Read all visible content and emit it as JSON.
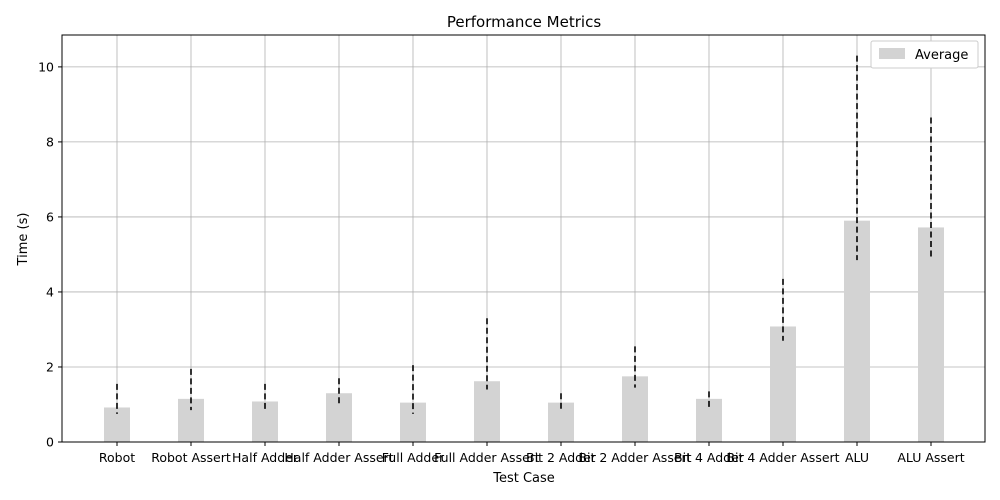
{
  "chart_data": {
    "type": "bar",
    "title": "Performance Metrics",
    "xlabel": "Test Case",
    "ylabel": "Time (s)",
    "categories": [
      "Robot",
      "Robot Assert",
      "Half Adder",
      "Half Adder Assert",
      "Full Adder",
      "Full Adder Assert",
      "Bit 2 Adder",
      "Bit 2 Adder Assert",
      "Bit 4 Adder",
      "Bit 4 Adder Assert",
      "ALU",
      "ALU Assert"
    ],
    "series": [
      {
        "name": "Average",
        "values": [
          0.92,
          1.15,
          1.08,
          1.3,
          1.05,
          1.62,
          1.05,
          1.75,
          1.15,
          3.08,
          5.9,
          5.72
        ],
        "min": [
          0.75,
          0.85,
          0.85,
          1.0,
          0.75,
          1.4,
          0.8,
          1.45,
          0.85,
          2.7,
          4.85,
          4.9
        ],
        "max": [
          1.55,
          1.95,
          1.55,
          1.7,
          2.05,
          3.3,
          1.3,
          2.55,
          1.35,
          4.35,
          10.3,
          8.65
        ]
      }
    ],
    "ylim": [
      0,
      10.85
    ],
    "yticks": [
      0,
      2,
      4,
      6,
      8,
      10
    ],
    "grid": true,
    "legend_position": "top-right",
    "bar_color": "#d3d3d3",
    "error_color": "#000000",
    "grid_color": "#b0b0b0"
  }
}
